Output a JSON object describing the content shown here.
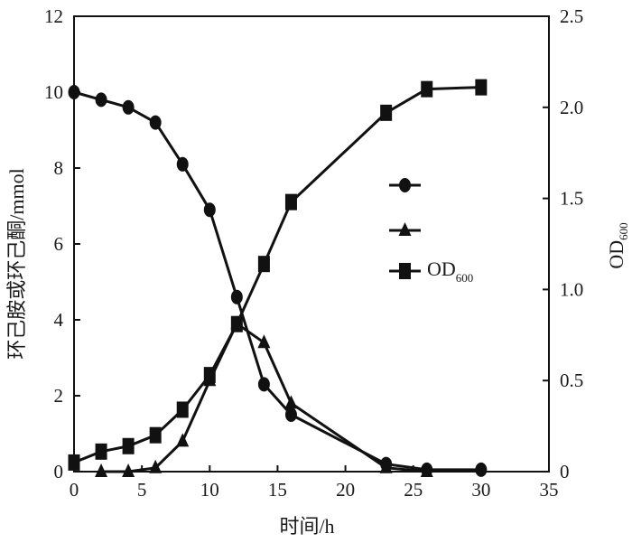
{
  "chart_data": {
    "type": "line",
    "xlabel": "时间/h",
    "ylabel_left": "环己胺或环己酮/mmol",
    "ylabel_right_main": "OD",
    "ylabel_right_sub": "600",
    "xlim": [
      0,
      35
    ],
    "ylim_left": [
      0,
      12
    ],
    "ylim_right": [
      0,
      2.5
    ],
    "x_ticks": [
      "0",
      "5",
      "10",
      "15",
      "20",
      "25",
      "30",
      "35"
    ],
    "y_left_ticks": [
      "0",
      "2",
      "4",
      "6",
      "8",
      "10",
      "12"
    ],
    "y_right_ticks": [
      "0",
      "0.5",
      "1.0",
      "1.5",
      "2.0",
      "2.5"
    ],
    "grid": false,
    "legend_position": "right-center",
    "line_color": "#111111",
    "series": [
      {
        "marker": "circle",
        "label": "",
        "axis": "left",
        "x": [
          0,
          2,
          4,
          6,
          8,
          10,
          12,
          14,
          16,
          23,
          26,
          30
        ],
        "y": [
          10.0,
          9.8,
          9.6,
          9.2,
          8.1,
          6.9,
          4.6,
          2.3,
          1.5,
          0.2,
          0.05,
          0.05
        ]
      },
      {
        "marker": "triangle",
        "label": "",
        "axis": "left",
        "x": [
          2,
          4,
          6,
          8,
          10,
          12,
          14,
          16,
          23,
          26
        ],
        "y": [
          0.0,
          0.0,
          0.1,
          0.8,
          2.4,
          3.9,
          3.4,
          1.8,
          0.1,
          0.0
        ]
      },
      {
        "marker": "square",
        "label_main": "OD",
        "label_sub": "600",
        "axis": "right",
        "x": [
          0,
          2,
          4,
          6,
          8,
          10,
          12,
          14,
          16,
          23,
          26,
          30
        ],
        "y": [
          0.05,
          0.11,
          0.14,
          0.2,
          0.34,
          0.53,
          0.81,
          1.14,
          1.48,
          1.97,
          2.1,
          2.11
        ]
      }
    ]
  }
}
